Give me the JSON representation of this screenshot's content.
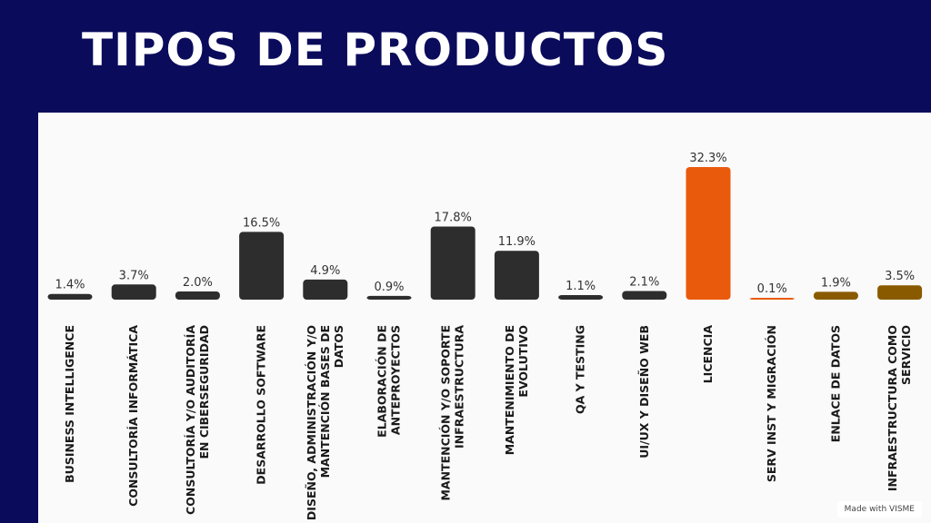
{
  "header": {
    "title": "TIPOS DE PRODUCTOS"
  },
  "watermark": "Made with VISME",
  "chart_data": {
    "type": "bar",
    "title": "TIPOS DE PRODUCTOS",
    "ylim": [
      0,
      35
    ],
    "grid": false,
    "categories": [
      "BUSINESS INTELLIGENCE",
      "CONSULTORÍA INFORMÁTICA",
      "CONSULTORÍA Y/O AUDITORÍA EN CIBERSEGURIDAD",
      "DESARROLLO SOFTWARE",
      "DISEÑO, ADMINISTRACIÓN Y/O MANTENCIÓN BASES DE DATOS",
      "ELABORACIÓN DE ANTEPROYECTOS",
      "MANTENCIÓN Y/O SOPORTE INFRAESTRUCTURA",
      "MANTENIMIENTO DE EVOLUTIVO",
      "QA Y TESTING",
      "UI/UX Y DISEÑO WEB",
      "LICENCIA",
      "SERV INST Y MIGRACIÓN",
      "ENLACE DE DATOS",
      "INFRAESTRUCTURA COMO SERVICIO"
    ],
    "label_lines": [
      [
        "BUSINESS INTELLIGENCE"
      ],
      [
        "CONSULTORÍA INFORMÁTICA"
      ],
      [
        "CONSULTORÍA Y/O AUDITORÍA",
        "EN CIBERSEGURIDAD"
      ],
      [
        "DESARROLLO SOFTWARE"
      ],
      [
        "DISEÑO, ADMINISTRACIÓN Y/O",
        "MANTENCIÓN BASES DE",
        "DATOS"
      ],
      [
        "ELABORACIÓN DE",
        "ANTEPROYECTOS"
      ],
      [
        "MANTENCIÓN Y/O SOPORTE",
        "INFRAESTRUCTURA"
      ],
      [
        "MANTENIMIENTO DE",
        "EVOLUTIVO"
      ],
      [
        "QA Y TESTING"
      ],
      [
        "UI/UX Y DISEÑO WEB"
      ],
      [
        "LICENCIA"
      ],
      [
        "SERV INST Y MIGRACIÓN"
      ],
      [
        "ENLACE DE DATOS"
      ],
      [
        "INFRAESTRUCTURA COMO",
        "SERVICIO"
      ]
    ],
    "values": [
      1.4,
      3.7,
      2.0,
      16.5,
      4.9,
      0.9,
      17.8,
      11.9,
      1.1,
      2.1,
      32.3,
      0.1,
      1.9,
      3.5
    ],
    "value_labels": [
      "1.4%",
      "3.7%",
      "2.0%",
      "16.5%",
      "4.9%",
      "0.9%",
      "17.8%",
      "11.9%",
      "1.1%",
      "2.1%",
      "32.3%",
      "0.1%",
      "1.9%",
      "3.5%"
    ],
    "colors": [
      "#2d2d2d",
      "#2d2d2d",
      "#2d2d2d",
      "#2d2d2d",
      "#2d2d2d",
      "#2d2d2d",
      "#2d2d2d",
      "#2d2d2d",
      "#2d2d2d",
      "#2d2d2d",
      "#ea5a0c",
      "#ea5a0c",
      "#8a5a00",
      "#8a5a00"
    ]
  }
}
